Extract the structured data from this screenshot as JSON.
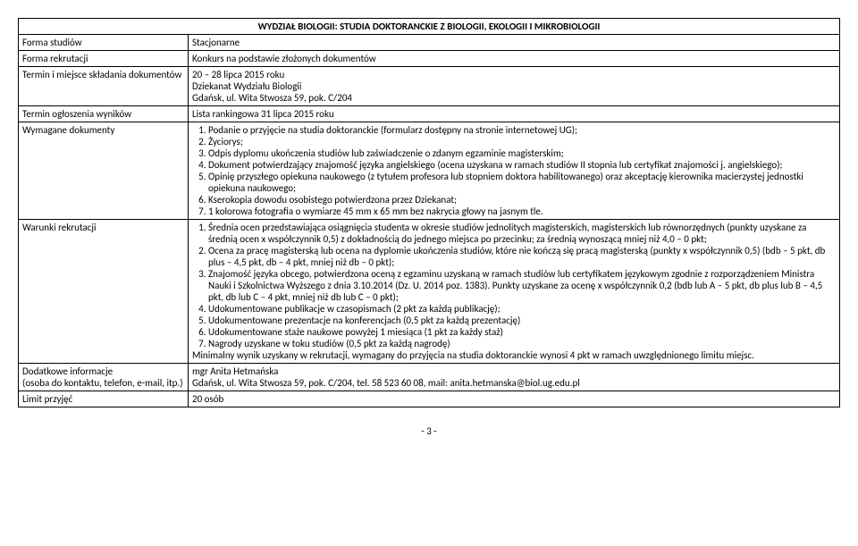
{
  "header": "WYDZIAŁ BIOLOGII: STUDIA DOKTORANCKIE Z BIOLOGII, EKOLOGII I MIKROBIOLOGII",
  "row1": {
    "label": "Forma studiów",
    "value": "Stacjonarne"
  },
  "row2": {
    "label": "Forma rekrutacji",
    "value": "Konkurs na podstawie złożonych dokumentów"
  },
  "row3": {
    "label": "Termin i miejsce składania dokumentów",
    "line1": "20 – 28 lipca 2015 roku",
    "line2": "Dziekanat Wydziału Biologii",
    "line3": "Gdańsk, ul. Wita Stwosza 59, pok. C/204"
  },
  "row4": {
    "label": "Termin ogłoszenia wyników",
    "value": "Lista rankingowa 31 lipca 2015 roku"
  },
  "row5": {
    "label": "Wymagane dokumenty",
    "items": [
      "Podanie o przyjęcie na studia doktoranckie (formularz dostępny na stronie internetowej UG);",
      "Życiorys;",
      "Odpis dyplomu ukończenia studiów lub zaświadczenie o zdanym egzaminie magisterskim;",
      "Dokument potwierdzający znajomość języka angielskiego (ocena uzyskana w ramach studiów II stopnia lub certyfikat znajomości j. angielskiego);",
      "Opinię przyszłego opiekuna naukowego (z tytułem profesora lub stopniem doktora habilitowanego) oraz akceptację kierownika macierzystej jednostki opiekuna naukowego;",
      "Kserokopia dowodu osobistego potwierdzona przez Dziekanat;",
      "1 kolorowa fotografia o wymiarze 45 mm x 65 mm bez nakrycia głowy na jasnym tle."
    ]
  },
  "row6": {
    "label": "Warunki rekrutacji",
    "items": [
      "Średnia ocen przedstawiająca osiągnięcia studenta w okresie studiów jednolitych magisterskich, magisterskich lub równorzędnych (punkty uzyskane za średnią ocen x współczynnik 0,5) z dokładnością do jednego miejsca po przecinku; za średnią wynoszącą mniej niż 4,0 – 0 pkt;",
      "Ocena za pracę magisterską lub ocena na dyplomie ukończenia studiów, które nie kończą się pracą magisterską (punkty x współczynnik 0,5) (bdb – 5 pkt, db plus – 4,5 pkt, db – 4 pkt, mniej niż db – 0 pkt);",
      "Znajomość języka obcego, potwierdzona oceną z egzaminu uzyskaną w ramach studiów lub certyfikatem językowym zgodnie z rozporządzeniem Ministra Nauki i Szkolnictwa Wyższego z dnia 3.10.2014 (Dz. U. 2014 poz. 1383). Punkty uzyskane za ocenę x współczynnik 0,2 (bdb lub A – 5 pkt, db plus lub B – 4,5 pkt, db lub C – 4 pkt, mniej niż db lub C – 0 pkt);",
      "Udokumentowane publikacje w czasopismach (2 pkt za każdą publikację);",
      "Udokumentowane prezentacje na konferencjach (0,5 pkt za każdą prezentację)",
      "Udokumentowane staże naukowe powyżej 1 miesiąca (1 pkt za każdy staż)",
      "Nagrody uzyskane w toku studiów (0,5 pkt za każdą nagrodę)"
    ],
    "tail": "Minimalny wynik uzyskany w rekrutacji, wymagany do przyjęcia na studia doktoranckie wynosi 4 pkt w ramach uwzględnionego limitu miejsc."
  },
  "row7": {
    "label1": "Dodatkowe informacje",
    "label2": "(osoba do kontaktu, telefon, e-mail, itp.)",
    "line1": "mgr Anita Hetmańska",
    "line2": "Gdańsk, ul. Wita Stwosza 59, pok. C/204, tel. 58 523 60 08, mail: anita.hetmanska@biol.ug.edu.pl"
  },
  "row8": {
    "label": "Limit przyjęć",
    "value": "20 osób"
  },
  "pageNum": "- 3 -"
}
